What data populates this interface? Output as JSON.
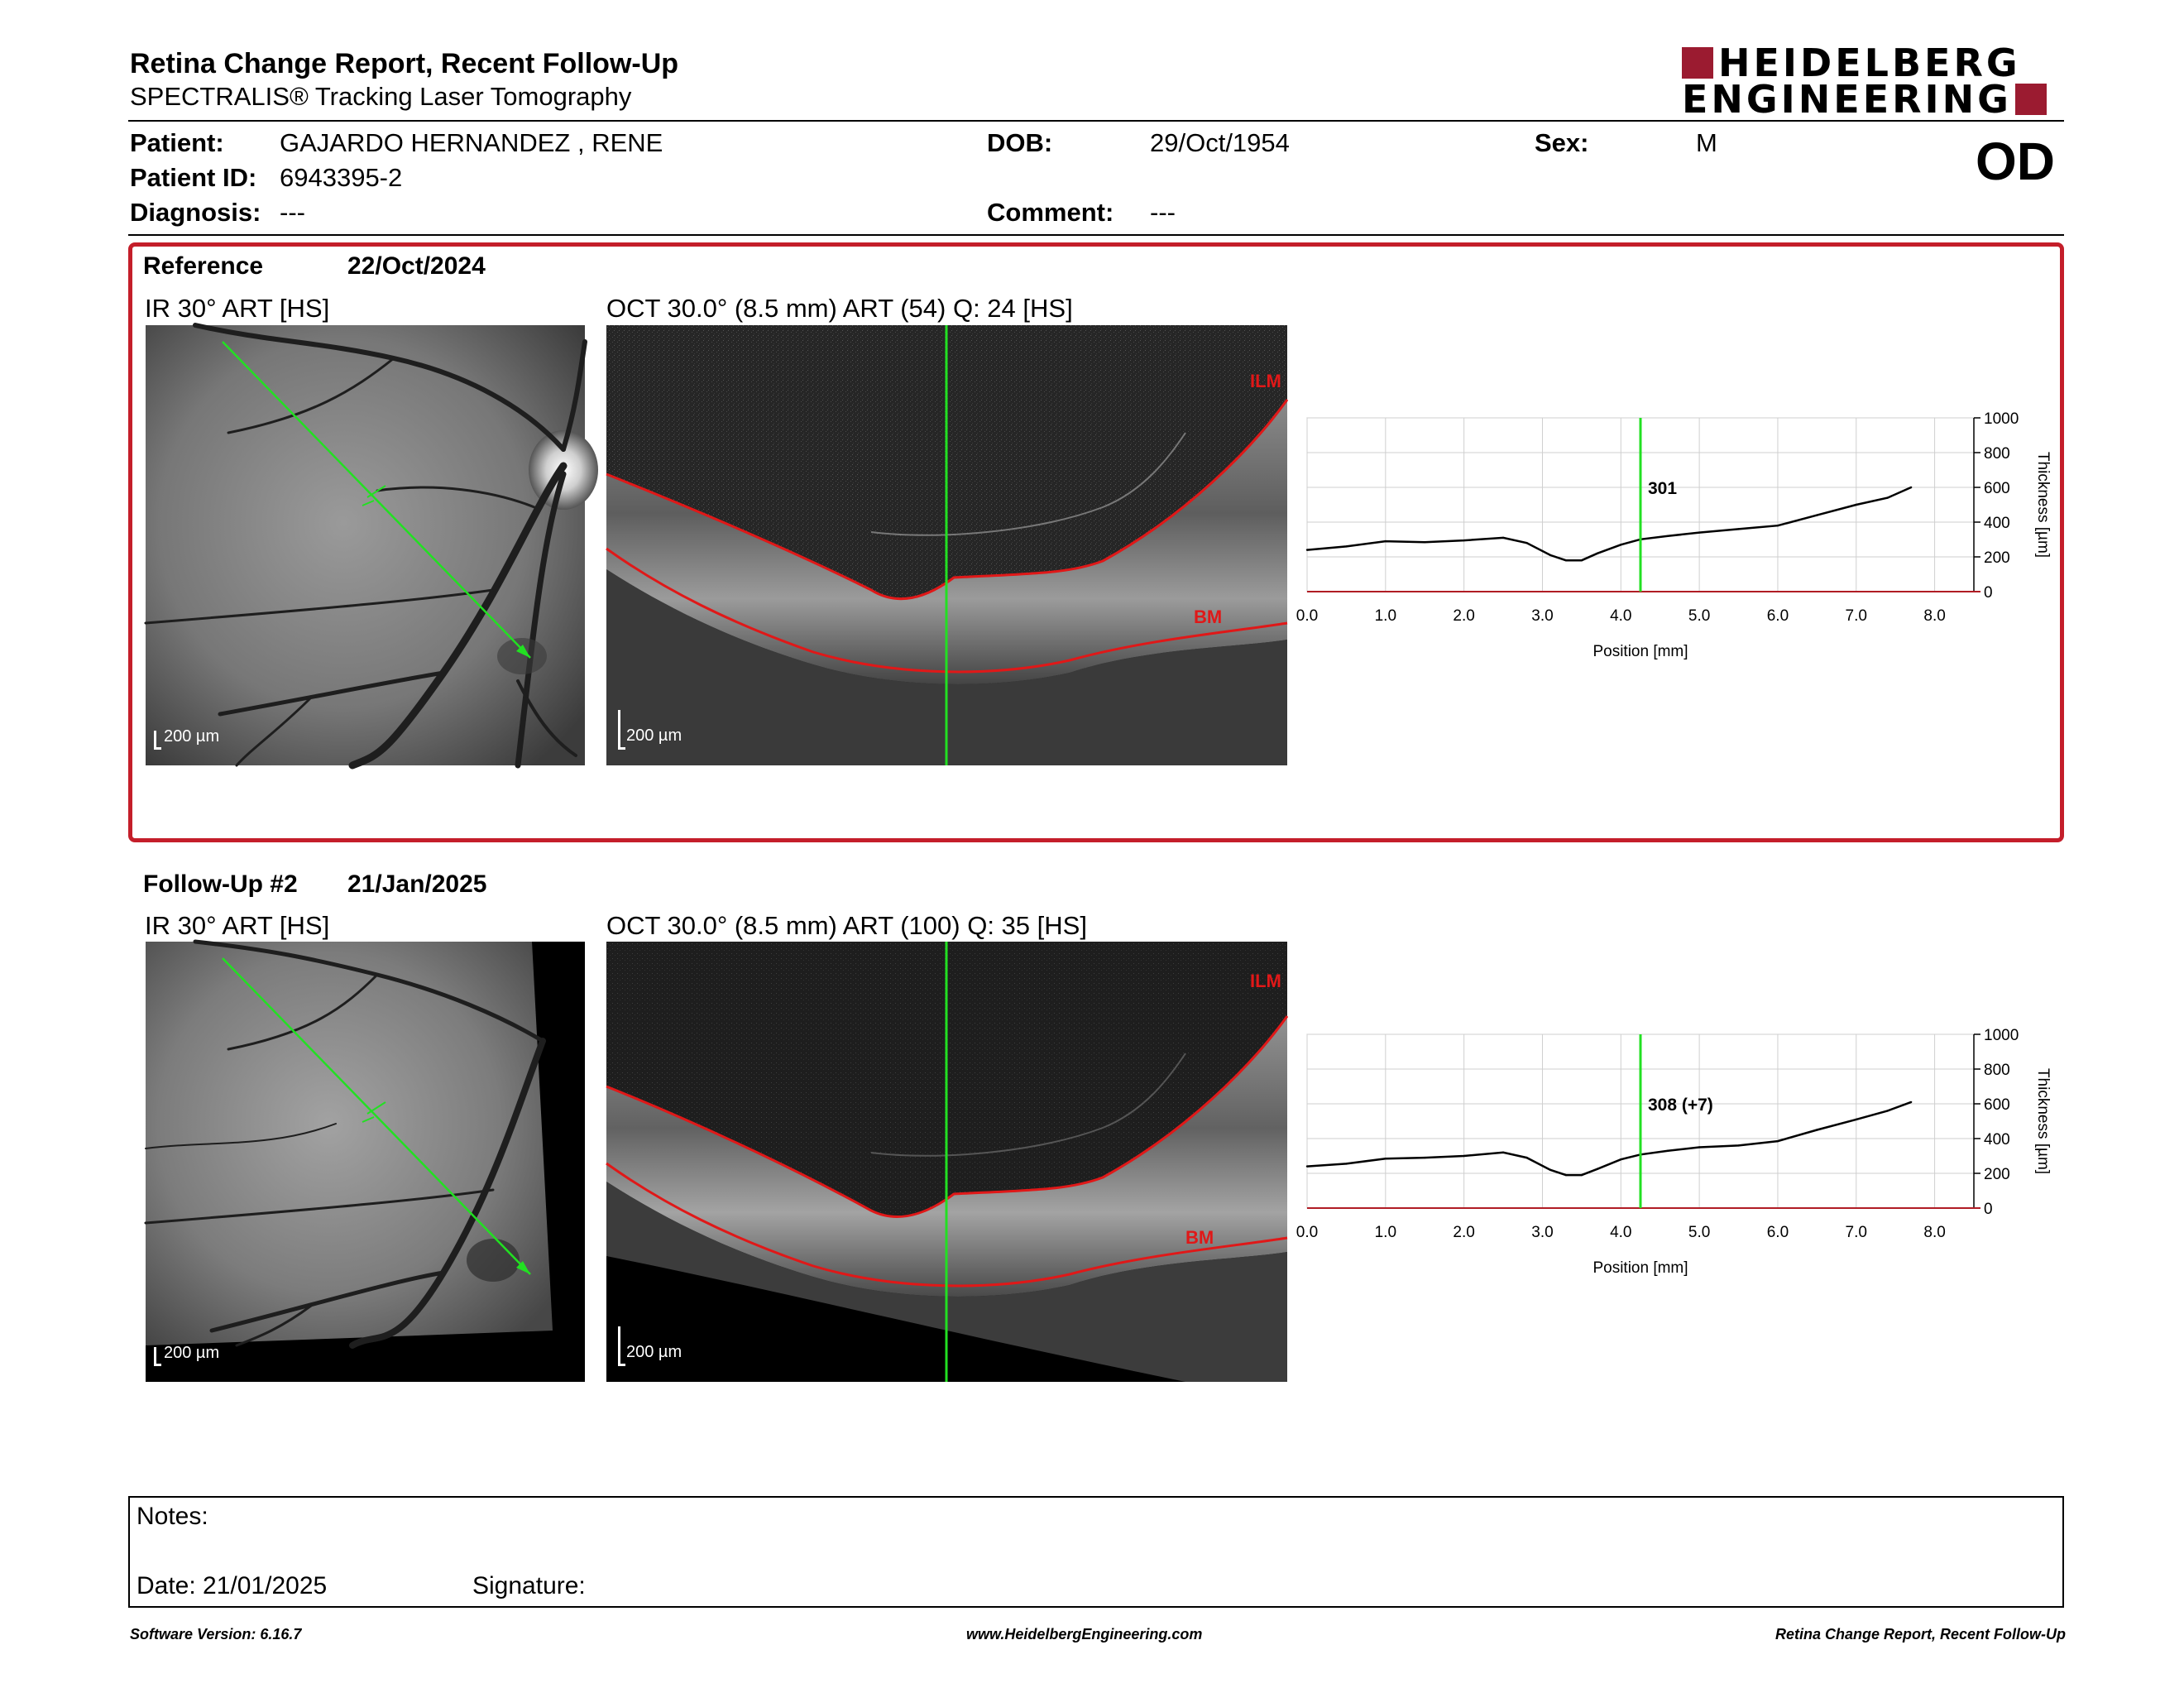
{
  "header": {
    "title": "Retina Change Report, Recent Follow-Up",
    "subtitle": "SPECTRALIS® Tracking Laser Tomography",
    "logo_line1": "HEIDELBERG",
    "logo_line2": "ENGINEERING",
    "eye": "OD"
  },
  "patient": {
    "patient_label": "Patient:",
    "patient_value": "GAJARDO HERNANDEZ , RENE",
    "id_label": "Patient ID:",
    "id_value": "6943395-2",
    "diagnosis_label": "Diagnosis:",
    "diagnosis_value": "---",
    "dob_label": "DOB:",
    "dob_value": "29/Oct/1954",
    "comment_label": "Comment:",
    "comment_value": "---",
    "sex_label": "Sex:",
    "sex_value": "M"
  },
  "reference": {
    "label": "Reference",
    "date": "22/Oct/2024",
    "ir_caption": "IR 30° ART [HS]",
    "oct_caption": "OCT 30.0° (8.5 mm) ART (54) Q: 24 [HS]",
    "scale": "200 µm",
    "ilm": "ILM",
    "bm": "BM"
  },
  "followup": {
    "label": "Follow-Up #2",
    "date": "21/Jan/2025",
    "ir_caption": "IR 30° ART [HS]",
    "oct_caption": "OCT 30.0° (8.5 mm) ART (100) Q: 35 [HS]",
    "scale": "200 µm",
    "ilm": "ILM",
    "bm": "BM"
  },
  "chart_data": [
    {
      "type": "line",
      "xlabel": "Position [mm]",
      "ylabel": "Thickness [µm]",
      "xlim": [
        0,
        8.5
      ],
      "ylim": [
        0,
        1000
      ],
      "x_ticks": [
        "0.0",
        "1.0",
        "2.0",
        "3.0",
        "4.0",
        "5.0",
        "6.0",
        "7.0",
        "8.0"
      ],
      "y_ticks": [
        "0",
        "200",
        "400",
        "600",
        "800",
        "1000"
      ],
      "grid": true,
      "marker_x": 4.25,
      "marker_label": "301",
      "x": [
        0.0,
        0.5,
        1.0,
        1.5,
        2.0,
        2.5,
        2.8,
        3.1,
        3.3,
        3.5,
        3.7,
        4.0,
        4.25,
        4.6,
        5.0,
        5.5,
        6.0,
        6.5,
        7.0,
        7.4,
        7.7
      ],
      "y": [
        240,
        260,
        290,
        285,
        295,
        310,
        280,
        210,
        180,
        180,
        220,
        270,
        301,
        320,
        340,
        360,
        380,
        440,
        500,
        540,
        600
      ]
    },
    {
      "type": "line",
      "xlabel": "Position [mm]",
      "ylabel": "Thickness [µm]",
      "xlim": [
        0,
        8.5
      ],
      "ylim": [
        0,
        1000
      ],
      "x_ticks": [
        "0.0",
        "1.0",
        "2.0",
        "3.0",
        "4.0",
        "5.0",
        "6.0",
        "7.0",
        "8.0"
      ],
      "y_ticks": [
        "0",
        "200",
        "400",
        "600",
        "800",
        "1000"
      ],
      "grid": true,
      "marker_x": 4.25,
      "marker_label": "308 (+7)",
      "x": [
        0.0,
        0.5,
        1.0,
        1.5,
        2.0,
        2.5,
        2.8,
        3.1,
        3.3,
        3.5,
        3.7,
        4.0,
        4.25,
        4.6,
        5.0,
        5.5,
        6.0,
        6.5,
        7.0,
        7.4,
        7.7
      ],
      "y": [
        240,
        255,
        285,
        290,
        300,
        320,
        290,
        220,
        190,
        190,
        225,
        280,
        308,
        330,
        350,
        360,
        385,
        450,
        510,
        560,
        610
      ]
    }
  ],
  "notes": {
    "notes_label": "Notes:",
    "date_label": "Date: 21/01/2025",
    "signature_label": "Signature:"
  },
  "footer": {
    "left": "Software Version: 6.16.7",
    "center": "www.HeidelbergEngineering.com",
    "right": "Retina Change Report, Recent Follow-Up"
  },
  "colors": {
    "accent_red": "#c41e2a",
    "logo_red": "#9b1b30",
    "scan_green": "#22e022"
  }
}
